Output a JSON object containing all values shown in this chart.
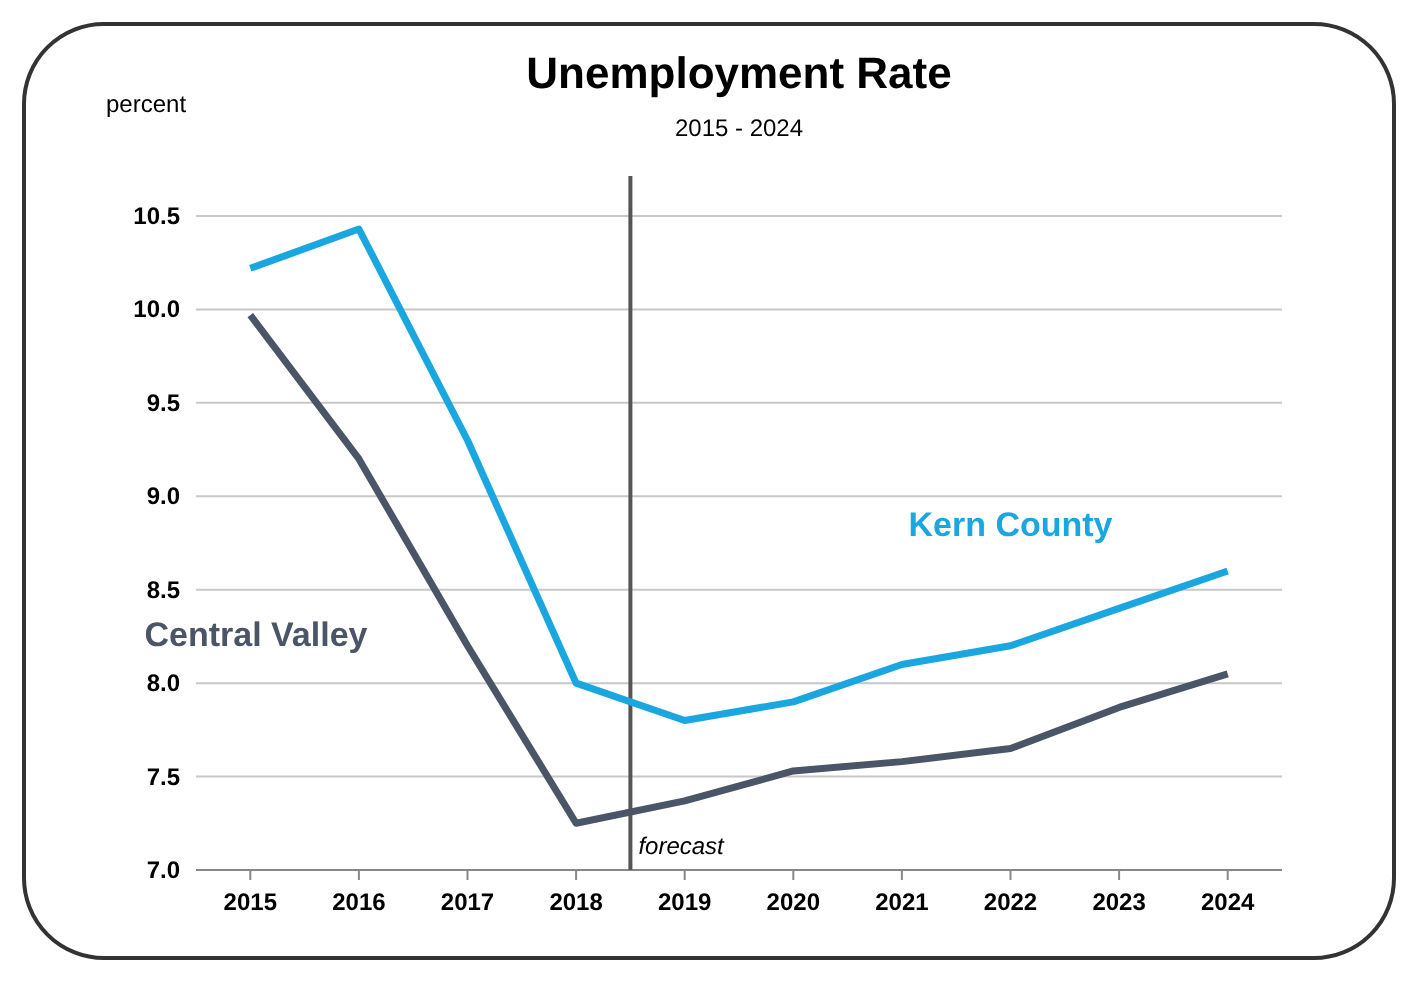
{
  "chart_data": {
    "type": "line",
    "title": "Unemployment Rate",
    "subtitle": "2015 - 2024",
    "ylabel": "percent",
    "x": [
      2015,
      2016,
      2017,
      2018,
      2019,
      2020,
      2021,
      2022,
      2023,
      2024
    ],
    "xlim": [
      2014.5,
      2024.5
    ],
    "xticks": [
      2015,
      2016,
      2017,
      2018,
      2019,
      2020,
      2021,
      2022,
      2023,
      2024
    ],
    "ylim": [
      7.0,
      10.5
    ],
    "yticks": [
      {
        "value": 7.0,
        "label": "7.0"
      },
      {
        "value": 7.5,
        "label": "7.5"
      },
      {
        "value": 8.0,
        "label": "8.0"
      },
      {
        "value": 8.5,
        "label": "8.5"
      },
      {
        "value": 9.0,
        "label": "9.0"
      },
      {
        "value": 9.5,
        "label": "9.5"
      },
      {
        "value": 10.0,
        "label": "10.0"
      },
      {
        "value": 10.5,
        "label": "10.5"
      }
    ],
    "grid": "y",
    "marker": "none",
    "line_style": "solid",
    "series": [
      {
        "name": "Kern County",
        "color": "#1aa7e0",
        "values": [
          10.22,
          10.43,
          9.3,
          8.0,
          7.8,
          7.9,
          8.1,
          8.2,
          8.4,
          8.6
        ]
      },
      {
        "name": "Central Valley",
        "color": "#4a5568",
        "values": [
          9.97,
          9.2,
          8.2,
          7.25,
          7.37,
          7.53,
          7.58,
          7.65,
          7.87,
          8.05
        ]
      }
    ],
    "ref_lines": [
      {
        "axis": "x",
        "value": 2018.5,
        "label": "forecast",
        "color": "#555555"
      }
    ]
  }
}
